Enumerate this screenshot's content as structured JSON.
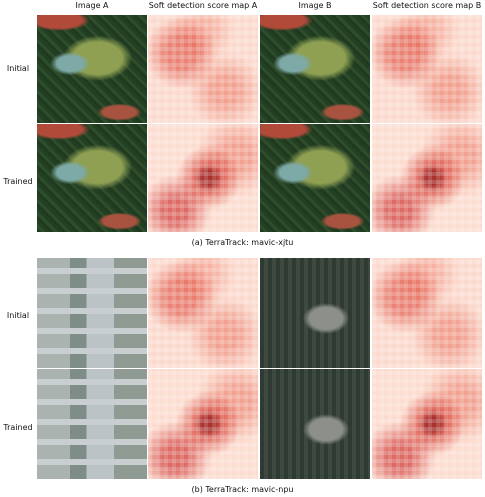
{
  "column_headers": [
    "Image A",
    "Soft detection score map A",
    "Image B",
    "Soft detection score map B"
  ],
  "panels": [
    {
      "caption": "(a) TerraTrack: mavic-xjtu",
      "rows": [
        "Initial",
        "Trained"
      ]
    },
    {
      "caption": "(b) TerraTrack: mavic-npu",
      "rows": [
        "Initial",
        "Trained"
      ]
    }
  ]
}
